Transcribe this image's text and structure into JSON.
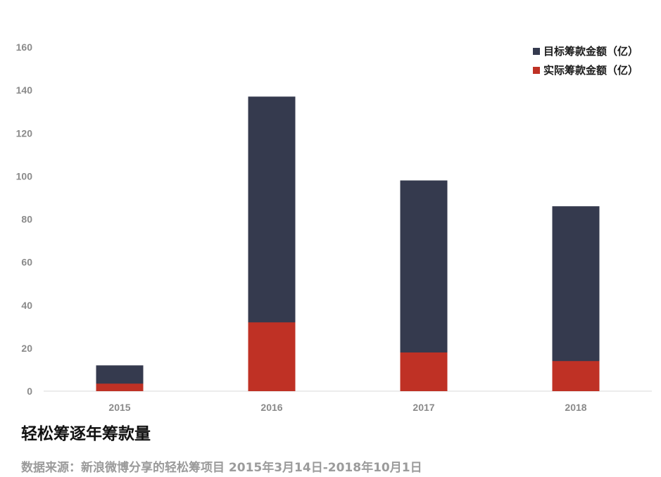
{
  "chart_data": {
    "type": "bar",
    "stacked": false,
    "overlapped": true,
    "categories": [
      "2015",
      "2016",
      "2017",
      "2018"
    ],
    "series": [
      {
        "name": "目标筹款金额（亿）",
        "color": "#353a4e",
        "values": [
          12,
          137,
          98,
          86
        ]
      },
      {
        "name": "实际筹款金额（亿）",
        "color": "#bf3125",
        "values": [
          3.5,
          32,
          18,
          14
        ]
      }
    ],
    "ylim": [
      0,
      160
    ],
    "yticks": [
      "0",
      "20",
      "40",
      "60",
      "80",
      "100",
      "120",
      "140",
      "160"
    ],
    "grid": false,
    "legend_position": "top-right"
  },
  "caption": {
    "title": "轻松筹逐年筹款量",
    "source": "数据来源：新浪微博分享的轻松筹项目 2015年3月14日-2018年10月1日"
  }
}
